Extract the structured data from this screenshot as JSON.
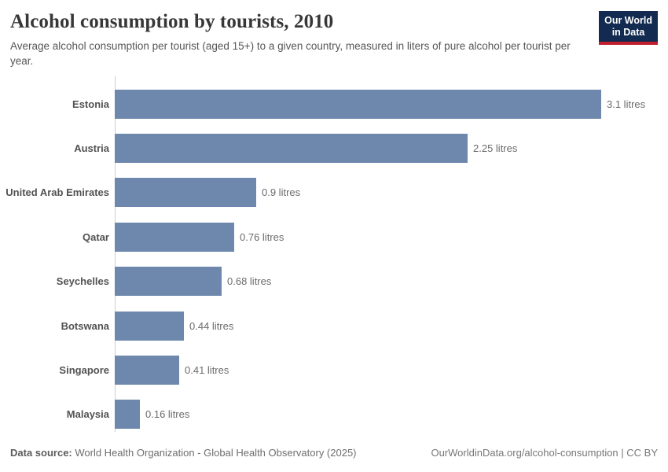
{
  "header": {
    "title": "Alcohol consumption by tourists, 2010",
    "subtitle": "Average alcohol consumption per tourist (aged 15+) to a given country, measured in liters of pure alcohol per tourist per year.",
    "logo_line1": "Our World",
    "logo_line2": "in Data"
  },
  "chart_data": {
    "type": "bar",
    "orientation": "horizontal",
    "title": "Alcohol consumption by tourists, 2010",
    "categories": [
      "Estonia",
      "Austria",
      "United Arab Emirates",
      "Qatar",
      "Seychelles",
      "Botswana",
      "Singapore",
      "Malaysia"
    ],
    "values": [
      3.1,
      2.25,
      0.9,
      0.76,
      0.68,
      0.44,
      0.41,
      0.16
    ],
    "value_labels": [
      "3.1 litres",
      "2.25 litres",
      "0.9 litres",
      "0.76 litres",
      "0.68 litres",
      "0.44 litres",
      "0.41 litres",
      "0.16 litres"
    ],
    "unit": "litres",
    "xlabel": "",
    "ylabel": "",
    "xlim": [
      0,
      3.1
    ],
    "grid": false,
    "legend": false,
    "bar_color": "#6d87ad"
  },
  "footer": {
    "data_source_label": "Data source:",
    "data_source_text": " World Health Organization - Global Health Observatory (2025)",
    "link_text": "OurWorldinData.org/alcohol-consumption | CC BY"
  },
  "colors": {
    "bar": "#6d87ad",
    "axis_line": "#cfcfcf",
    "logo_bg": "#132b50",
    "logo_underline": "#c01f2f"
  }
}
